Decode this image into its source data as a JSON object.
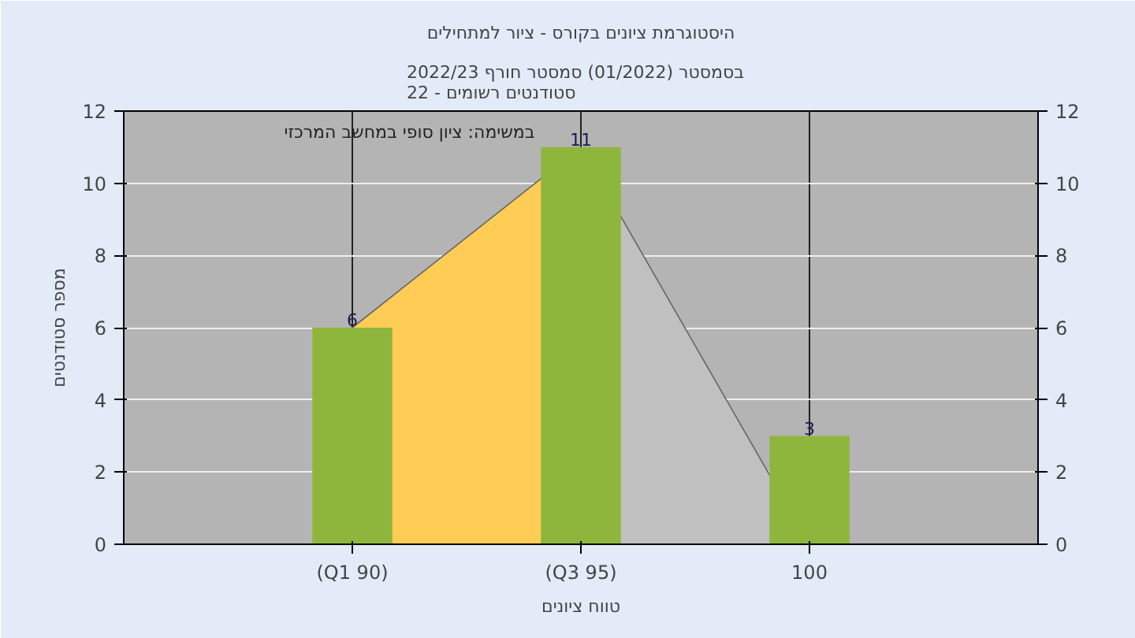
{
  "chart_data": {
    "type": "bar",
    "title": "היסטוגרמת ציונים בקורס - ציור למתחילים",
    "subtitle": "בסמסטר  (01/2022)  סמסטר חורף 2022/23\nסטודנטים רשומים - 22",
    "xlabel": "טווח ציונים",
    "ylabel": "מספר סטודנטים",
    "categories": [
      "(Q1 90)",
      "(Q3 95)",
      "100"
    ],
    "series": [
      {
        "type": "area",
        "color": "#ffcc55",
        "values": [
          6,
          11,
          null
        ]
      },
      {
        "type": "area",
        "color": "#c0c0c0",
        "values": [
          null,
          11,
          0
        ]
      },
      {
        "color": "#8fb63c",
        "values": [
          6,
          11,
          3
        ],
        "value_labels": [
          "6",
          "11",
          "3"
        ]
      }
    ],
    "ylim": [
      0,
      12
    ],
    "yticks": [
      0,
      2,
      4,
      6,
      8,
      10,
      12
    ],
    "y2lim": [
      0,
      12
    ],
    "y2ticks": [
      0,
      2,
      4,
      6,
      8,
      10,
      12
    ],
    "grid": true,
    "annotations": [
      "במשימה: ציון סופי במחשב המרכזי"
    ]
  }
}
